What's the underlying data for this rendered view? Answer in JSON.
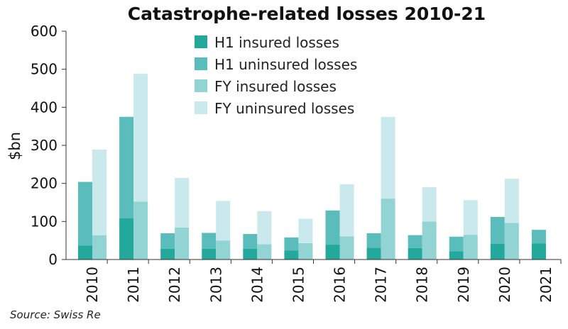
{
  "source": "Source: Swiss Re",
  "chart_data": {
    "type": "bar",
    "title": "Catastrophe-related losses 2010-21",
    "ylabel": "$bn",
    "xlabel": "",
    "ylim": [
      0,
      600
    ],
    "yticks": [
      0,
      100,
      200,
      300,
      400,
      500,
      600
    ],
    "categories": [
      "2010",
      "2011",
      "2012",
      "2013",
      "2014",
      "2015",
      "2016",
      "2017",
      "2018",
      "2019",
      "2020",
      "2021"
    ],
    "series": [
      {
        "name": "H1 insured losses",
        "color": "#23a89c",
        "group": "H1",
        "values": [
          37,
          108,
          28,
          28,
          28,
          24,
          39,
          31,
          30,
          22,
          41,
          42
        ]
      },
      {
        "name": "H1 uninsured losses",
        "color": "#5bbdbb",
        "group": "H1",
        "values": [
          167,
          267,
          41,
          42,
          39,
          34,
          90,
          38,
          34,
          38,
          71,
          36
        ]
      },
      {
        "name": "FY insured losses",
        "color": "#92d3d3",
        "group": "FY",
        "values": [
          64,
          152,
          84,
          50,
          40,
          43,
          61,
          160,
          100,
          65,
          96,
          null
        ]
      },
      {
        "name": "FY uninsured losses",
        "color": "#c9e9ec",
        "group": "FY",
        "values": [
          225,
          336,
          130,
          104,
          87,
          64,
          137,
          215,
          90,
          91,
          116,
          null
        ]
      }
    ],
    "legend_position": "top-center",
    "grid": false
  }
}
